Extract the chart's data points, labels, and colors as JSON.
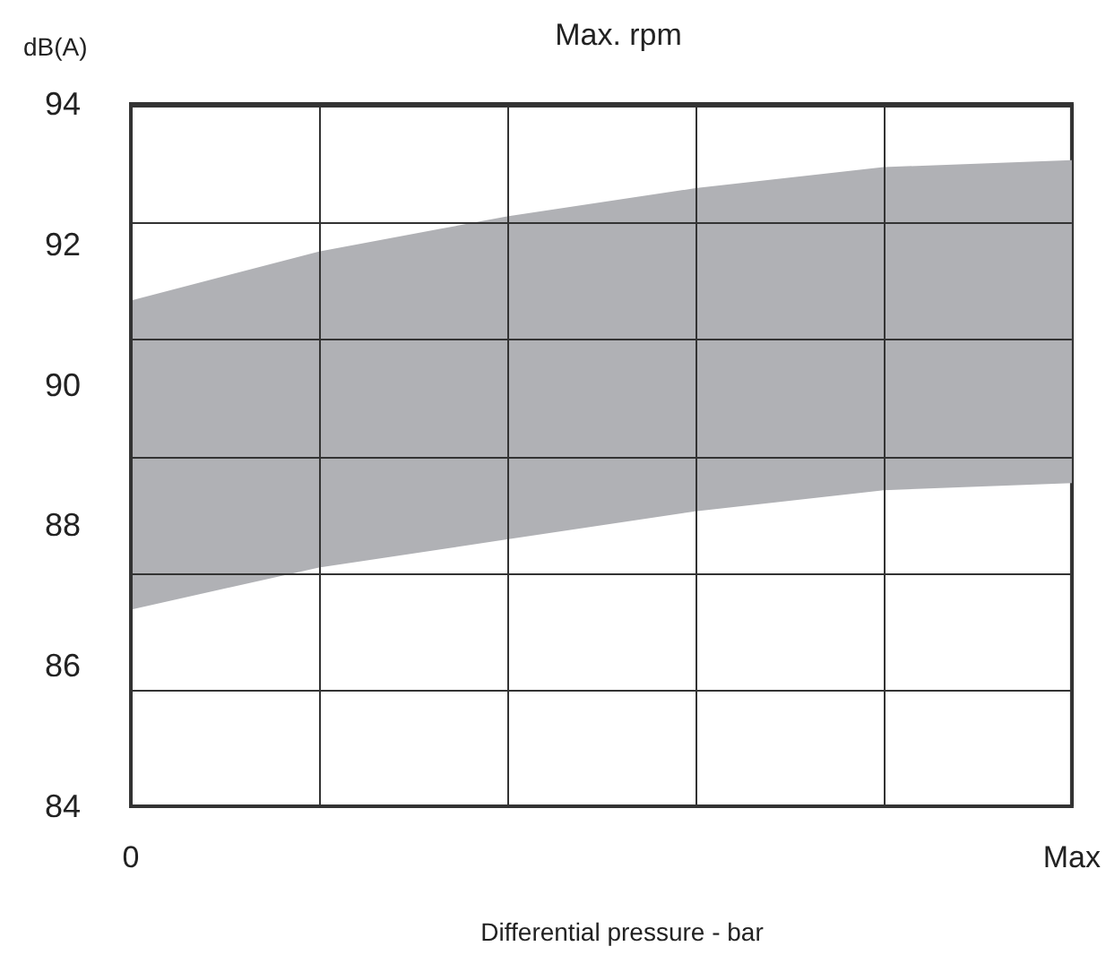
{
  "chart_data": {
    "type": "area",
    "title": "Max. rpm",
    "xlabel": "Differential pressure - bar",
    "ylabel": "dB(A)",
    "categories": [
      "0",
      null,
      null,
      null,
      null,
      "Max"
    ],
    "series": [
      {
        "color": "#b0b1b5",
        "values": [
          null,
          null,
          null,
          null,
          null,
          null
        ],
        "lower": [
          86.8,
          87.4,
          87.8,
          88.2,
          88.5,
          88.6
        ],
        "upper": [
          91.2,
          91.9,
          92.4,
          92.8,
          93.1,
          93.2
        ]
      }
    ],
    "ylim": [
      84,
      94
    ],
    "yticks": [
      84,
      86,
      88,
      90,
      92,
      94,
      {
        "value": 85.67,
        "label": null
      },
      {
        "value": 87.33,
        "label": null
      },
      {
        "value": 89,
        "label": null
      },
      {
        "value": 90.67,
        "label": null
      },
      {
        "value": 92.33,
        "label": null
      }
    ],
    "grid": true
  }
}
